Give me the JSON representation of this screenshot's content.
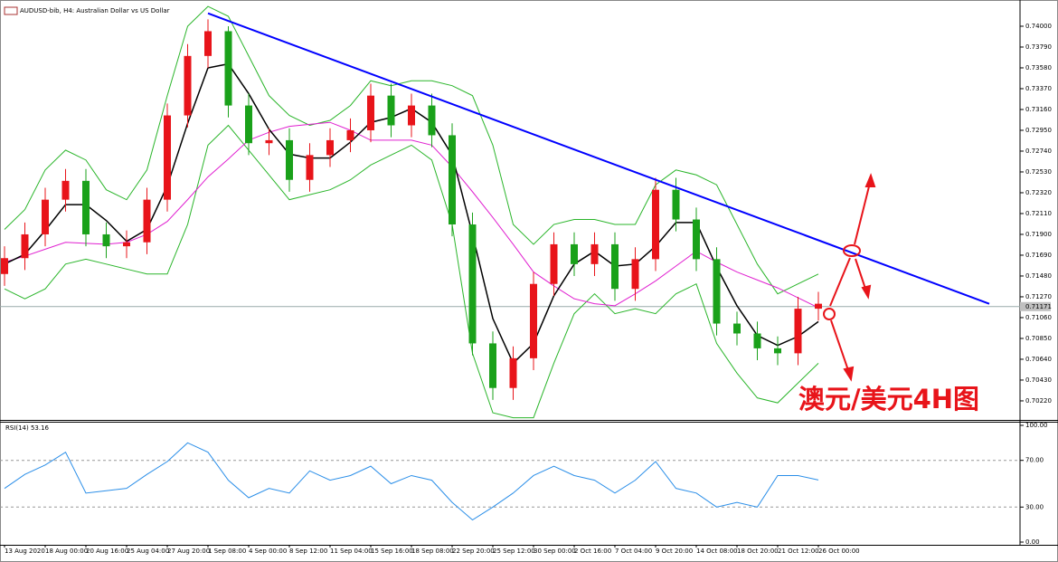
{
  "chart_data": [
    {
      "type": "candlestick",
      "title": "AUDUSD-bib, H4: Australian Dollar vs US Dollar",
      "categories": [
        "13 Aug 2020",
        null,
        "18 Aug 00:00",
        null,
        "20 Aug 16:00",
        null,
        "25 Aug 04:00",
        null,
        "27 Aug 20:00",
        null,
        "1 Sep 08:00",
        null,
        "4 Sep 00:00",
        null,
        "8 Sep 12:00",
        null,
        "11 Sep 04:00",
        null,
        "15 Sep 16:00",
        null,
        "18 Sep 08:00",
        null,
        "22 Sep 20:00",
        null,
        "25 Sep 12:00",
        null,
        "30 Sep 00:00",
        null,
        "2 Oct 16:00",
        null,
        "7 Oct 04:00",
        null,
        "9 Oct 20:00",
        null,
        "14 Oct 08:00",
        null,
        "18 Oct 20:00",
        null,
        "21 Oct 12:00",
        null,
        "26 Oct 00:00"
      ],
      "open": [
        0.715,
        0.7166,
        0.719,
        0.7225,
        0.7244,
        0.719,
        0.7178,
        0.7182,
        0.7225,
        0.731,
        0.737,
        0.7395,
        0.732,
        0.7282,
        0.7285,
        0.7245,
        0.727,
        0.7285,
        0.7295,
        0.733,
        0.73,
        0.732,
        0.729,
        0.72,
        0.708,
        0.7035,
        0.7065,
        0.714,
        0.718,
        0.716,
        0.718,
        0.7135,
        0.7165,
        0.7235,
        0.7205,
        0.7165,
        0.71,
        0.709,
        0.7075,
        0.707,
        0.7115
      ],
      "high": [
        0.7178,
        0.7202,
        0.7237,
        0.7256,
        0.7256,
        0.7202,
        0.7194,
        0.7237,
        0.7322,
        0.7382,
        0.7407,
        0.74,
        0.7332,
        0.7297,
        0.7297,
        0.7282,
        0.7297,
        0.7307,
        0.7342,
        0.7342,
        0.7332,
        0.7332,
        0.7302,
        0.7212,
        0.7092,
        0.7077,
        0.7152,
        0.7192,
        0.7192,
        0.7192,
        0.7192,
        0.7177,
        0.7247,
        0.7247,
        0.7217,
        0.7177,
        0.7112,
        0.7102,
        0.7087,
        0.7127,
        0.7132
      ],
      "low": [
        0.7138,
        0.7154,
        0.7178,
        0.7213,
        0.7178,
        0.7166,
        0.7166,
        0.717,
        0.7213,
        0.7298,
        0.7358,
        0.7308,
        0.727,
        0.727,
        0.7233,
        0.7233,
        0.7258,
        0.7273,
        0.7283,
        0.7288,
        0.7288,
        0.7278,
        0.7188,
        0.7068,
        0.7023,
        0.7023,
        0.7053,
        0.7128,
        0.7148,
        0.7148,
        0.7123,
        0.7123,
        0.7153,
        0.7193,
        0.7153,
        0.7088,
        0.7078,
        0.7063,
        0.7058,
        0.7058,
        0.7103
      ],
      "close": [
        0.7166,
        0.719,
        0.7225,
        0.7244,
        0.719,
        0.7178,
        0.7182,
        0.7225,
        0.731,
        0.737,
        0.7395,
        0.732,
        0.7282,
        0.7285,
        0.7245,
        0.727,
        0.7285,
        0.7295,
        0.733,
        0.73,
        0.732,
        0.729,
        0.72,
        0.708,
        0.7035,
        0.7065,
        0.714,
        0.718,
        0.716,
        0.718,
        0.7135,
        0.7165,
        0.7235,
        0.7205,
        0.7165,
        0.71,
        0.709,
        0.7075,
        0.707,
        0.7115,
        0.712
      ],
      "up_color": "#e8141a",
      "down_color": "#1aa11a",
      "overlays": [
        {
          "color": "#2ab52a",
          "values": [
            0.7195,
            0.7215,
            0.7255,
            0.7275,
            0.7265,
            0.7235,
            0.7225,
            0.7255,
            0.733,
            0.74,
            0.742,
            0.741,
            0.737,
            0.733,
            0.731,
            0.73,
            0.7305,
            0.732,
            0.7345,
            0.734,
            0.7345,
            0.7345,
            0.734,
            0.733,
            0.728,
            0.72,
            0.718,
            0.72,
            0.7205,
            0.7205,
            0.72,
            0.72,
            0.724,
            0.7255,
            0.725,
            0.724,
            0.72,
            0.716,
            0.713,
            0.714,
            0.715
          ]
        },
        {
          "color": "#2ab52a",
          "values": [
            0.7135,
            0.7125,
            0.7135,
            0.716,
            0.7165,
            0.716,
            0.7155,
            0.715,
            0.715,
            0.72,
            0.728,
            0.73,
            0.7275,
            0.725,
            0.7225,
            0.723,
            0.7235,
            0.7245,
            0.726,
            0.727,
            0.728,
            0.7265,
            0.72,
            0.707,
            0.701,
            0.7005,
            0.7005,
            0.706,
            0.711,
            0.713,
            0.711,
            0.7115,
            0.711,
            0.713,
            0.714,
            0.708,
            0.705,
            0.7025,
            0.702,
            0.704,
            0.706
          ]
        },
        {
          "color": "#e020d0",
          "values": [
            0.7162,
            0.7168,
            0.7175,
            0.7182,
            0.7181,
            0.718,
            0.7182,
            0.719,
            0.7203,
            0.7225,
            0.7248,
            0.7266,
            0.7285,
            0.7293,
            0.7299,
            0.7301,
            0.7303,
            0.7295,
            0.7285,
            0.7285,
            0.7285,
            0.728,
            0.7258,
            0.7233,
            0.7207,
            0.718,
            0.7152,
            0.7138,
            0.7125,
            0.712,
            0.7118,
            0.713,
            0.7143,
            0.7158,
            0.7173,
            0.7162,
            0.7152,
            0.7144,
            0.7136,
            0.7126,
            0.7116
          ]
        },
        {
          "color": "#000000",
          "values": [
            0.716,
            0.717,
            0.7194,
            0.722,
            0.722,
            0.7204,
            0.7183,
            0.7195,
            0.7239,
            0.7302,
            0.7358,
            0.7362,
            0.7332,
            0.7296,
            0.7271,
            0.7267,
            0.7267,
            0.7283,
            0.7303,
            0.7308,
            0.7317,
            0.7303,
            0.727,
            0.719,
            0.7105,
            0.706,
            0.708,
            0.7128,
            0.716,
            0.7173,
            0.7158,
            0.716,
            0.7178,
            0.7202,
            0.7202,
            0.7157,
            0.7118,
            0.7088,
            0.7078,
            0.7087,
            0.7102
          ]
        }
      ],
      "trendline": {
        "color": "#0000ff",
        "x": [
          10,
          48.4
        ],
        "y": [
          0.7413,
          0.712
        ]
      },
      "current_price": {
        "value": 0.71171,
        "label": "0.71171"
      },
      "annotation": "澳元/美元4H图",
      "ylim": [
        0.70037,
        0.74219
      ],
      "yticks": [
        {
          "value": 0.74,
          "label": "0.74000"
        },
        {
          "value": 0.7379,
          "label": "0.73790"
        },
        {
          "value": 0.7358,
          "label": "0.73580"
        },
        {
          "value": 0.7337,
          "label": "0.73370"
        },
        {
          "value": 0.7316,
          "label": "0.73160"
        },
        {
          "value": 0.7295,
          "label": "0.72950"
        },
        {
          "value": 0.7274,
          "label": "0.72740"
        },
        {
          "value": 0.7253,
          "label": "0.72530"
        },
        {
          "value": 0.7232,
          "label": "0.72320"
        },
        {
          "value": 0.7211,
          "label": "0.72110"
        },
        {
          "value": 0.719,
          "label": "0.71900"
        },
        {
          "value": 0.7169,
          "label": "0.71690"
        },
        {
          "value": 0.7148,
          "label": "0.71480"
        },
        {
          "value": 0.7127,
          "label": "0.71270"
        },
        {
          "value": 0.7106,
          "label": "0.71060"
        },
        {
          "value": 0.7085,
          "label": "0.70850"
        },
        {
          "value": 0.7064,
          "label": "0.70640"
        },
        {
          "value": 0.7043,
          "label": "0.70430"
        },
        {
          "value": 0.7022,
          "label": "0.70220"
        }
      ]
    },
    {
      "type": "line",
      "title": "RSI(14) 53.16",
      "series": [
        {
          "color": "#2a8ee8",
          "values": [
            46,
            58,
            66,
            77,
            42,
            44,
            46,
            58,
            69,
            85,
            77,
            53,
            38,
            46,
            42,
            61,
            53,
            57,
            65,
            50,
            57,
            53,
            34,
            19,
            30,
            42,
            57,
            65,
            57,
            53,
            42,
            53,
            69,
            46,
            42,
            30,
            34,
            30,
            57,
            57,
            53.16
          ]
        }
      ],
      "ylim": [
        0,
        100
      ],
      "yticks": [
        {
          "value": 100,
          "label": "100.00"
        },
        {
          "value": 70,
          "label": "70.00"
        },
        {
          "value": 30,
          "label": "30.00"
        },
        {
          "value": 0,
          "label": "0.00"
        }
      ]
    }
  ]
}
